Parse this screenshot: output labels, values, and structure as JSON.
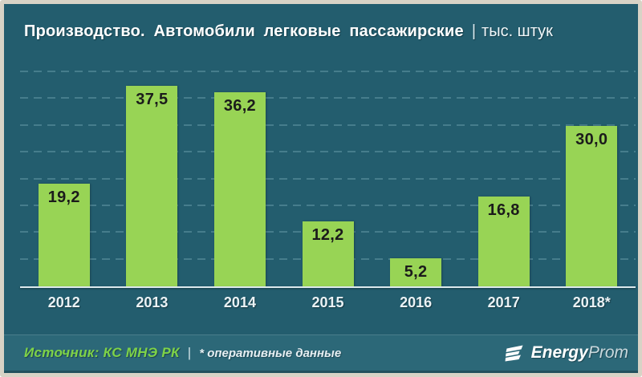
{
  "title": {
    "main": "Производство. Автомобили легковые пассажирские",
    "separator": "|",
    "unit": "тыс. штук"
  },
  "chart_data": {
    "type": "bar",
    "title": "Производство. Автомобили легковые пассажирские",
    "ylabel": "тыс. штук",
    "xlabel": "",
    "categories": [
      "2012",
      "2013",
      "2014",
      "2015",
      "2016",
      "2017",
      "2018*"
    ],
    "values": [
      19.2,
      37.5,
      36.2,
      12.2,
      5.2,
      16.8,
      30.0
    ],
    "value_labels": [
      "19,2",
      "37,5",
      "36,2",
      "12,2",
      "5,2",
      "16,8",
      "30,0"
    ],
    "ylim": [
      0,
      40
    ],
    "gridline_step": 5,
    "grid": "horizontal-dashed",
    "legend": "none",
    "bar_color": "#98d455",
    "background_color": "#235d6e"
  },
  "footer": {
    "source_label": "Источник: КС МНЭ РК",
    "separator": "|",
    "note": "* оперативные данные",
    "logo": {
      "energy": "Energy",
      "prom": "Prom"
    }
  },
  "colors": {
    "frame": "#d8d3c6",
    "chart_background": "#235d6e",
    "footer_background": "#2c6878",
    "bar": "#98d455",
    "bar_label": "#1b1b1b",
    "gridline": "#467d8c",
    "axis_line": "#dde9ed",
    "title_text": "#ffffff",
    "year_label": "#eaf2f5",
    "source_text": "#7ed348"
  }
}
